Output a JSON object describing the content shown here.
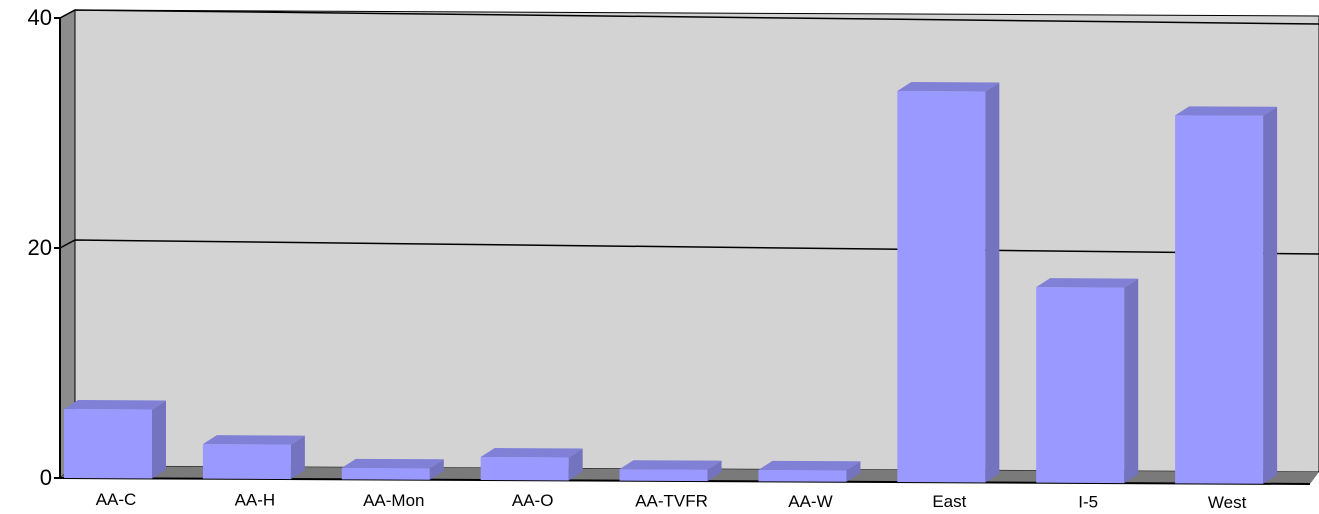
{
  "chart_data": {
    "type": "bar",
    "categories": [
      "AA-C",
      "AA-H",
      "AA-Mon",
      "AA-O",
      "AA-TVFR",
      "AA-W",
      "East",
      "I-5",
      "West"
    ],
    "values": [
      6,
      3,
      1,
      2,
      1,
      1,
      34,
      17,
      32
    ],
    "ylim": [
      0,
      40
    ],
    "yticks": [
      "0",
      "20",
      "40"
    ],
    "grid": true,
    "legend": "none",
    "colors": {
      "bar_front": "#9999ff",
      "bar_side": "#7373c0",
      "bar_top": "#8080d6",
      "back_wall": "#d3d3d3",
      "side_wall": "#8c8c8c",
      "floor": "#7a7a7a"
    }
  }
}
